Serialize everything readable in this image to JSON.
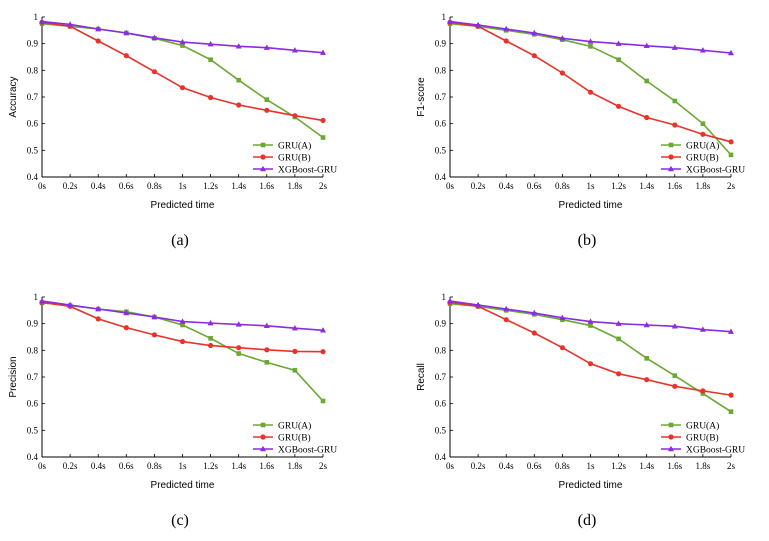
{
  "chart_data": [
    {
      "type": "line",
      "caption": "(a)",
      "xlabel": "Predicted time",
      "ylabel": "Accuracy",
      "categories": [
        "0s",
        "0.2s",
        "0.4s",
        "0.6s",
        "0.8s",
        "1s",
        "1.2s",
        "1.4s",
        "1.6s",
        "1.8s",
        "2s"
      ],
      "ylim": [
        0.4,
        1.0
      ],
      "yticks": [
        "0.4",
        "0.5",
        "0.6",
        "0.7",
        "0.8",
        "0.9",
        "1"
      ],
      "series": [
        {
          "name": "GRU(A)",
          "color": "#6aa832",
          "marker": "square",
          "values": [
            0.975,
            0.965,
            0.955,
            0.94,
            0.92,
            0.893,
            0.84,
            0.763,
            0.69,
            0.625,
            0.548
          ]
        },
        {
          "name": "GRU(B)",
          "color": "#e8332a",
          "marker": "circle",
          "values": [
            0.98,
            0.965,
            0.91,
            0.855,
            0.795,
            0.735,
            0.698,
            0.67,
            0.65,
            0.63,
            0.612
          ]
        },
        {
          "name": "XGBoost-GRU",
          "color": "#8b2be2",
          "marker": "triangle",
          "values": [
            0.983,
            0.972,
            0.955,
            0.94,
            0.922,
            0.906,
            0.898,
            0.89,
            0.885,
            0.875,
            0.866
          ]
        }
      ]
    },
    {
      "type": "line",
      "caption": "(b)",
      "xlabel": "Predicted time",
      "ylabel": "F1-score",
      "categories": [
        "0s",
        "0.2s",
        "0.4s",
        "0.6s",
        "0.8s",
        "1s",
        "1.2s",
        "1.4s",
        "1.6s",
        "1.8s",
        "2s"
      ],
      "ylim": [
        0.4,
        1.0
      ],
      "yticks": [
        "0.4",
        "0.5",
        "0.6",
        "0.7",
        "0.8",
        "0.9",
        "1"
      ],
      "series": [
        {
          "name": "GRU(A)",
          "color": "#6aa832",
          "marker": "square",
          "values": [
            0.975,
            0.965,
            0.95,
            0.935,
            0.915,
            0.89,
            0.84,
            0.76,
            0.685,
            0.6,
            0.483
          ]
        },
        {
          "name": "GRU(B)",
          "color": "#e8332a",
          "marker": "circle",
          "values": [
            0.98,
            0.965,
            0.91,
            0.855,
            0.79,
            0.718,
            0.665,
            0.623,
            0.595,
            0.56,
            0.532
          ]
        },
        {
          "name": "XGBoost-GRU",
          "color": "#8b2be2",
          "marker": "triangle",
          "values": [
            0.983,
            0.97,
            0.955,
            0.94,
            0.92,
            0.908,
            0.9,
            0.892,
            0.885,
            0.875,
            0.865
          ]
        }
      ]
    },
    {
      "type": "line",
      "caption": "(c)",
      "xlabel": "Predicted time",
      "ylabel": "Precision",
      "categories": [
        "0s",
        "0.2s",
        "0.4s",
        "0.6s",
        "0.8s",
        "1s",
        "1.2s",
        "1.4s",
        "1.6s",
        "1.8s",
        "2s"
      ],
      "ylim": [
        0.4,
        1.0
      ],
      "yticks": [
        "0.4",
        "0.5",
        "0.6",
        "0.7",
        "0.8",
        "0.9",
        "1"
      ],
      "series": [
        {
          "name": "GRU(A)",
          "color": "#6aa832",
          "marker": "square",
          "values": [
            0.978,
            0.968,
            0.955,
            0.945,
            0.925,
            0.895,
            0.845,
            0.788,
            0.755,
            0.725,
            0.61
          ]
        },
        {
          "name": "GRU(B)",
          "color": "#e8332a",
          "marker": "circle",
          "values": [
            0.98,
            0.965,
            0.918,
            0.885,
            0.858,
            0.833,
            0.818,
            0.81,
            0.802,
            0.796,
            0.795
          ]
        },
        {
          "name": "XGBoost-GRU",
          "color": "#8b2be2",
          "marker": "triangle",
          "values": [
            0.985,
            0.97,
            0.955,
            0.94,
            0.925,
            0.908,
            0.902,
            0.897,
            0.892,
            0.883,
            0.875
          ]
        }
      ]
    },
    {
      "type": "line",
      "caption": "(d)",
      "xlabel": "Predicted time",
      "ylabel": "Recall",
      "categories": [
        "0s",
        "0.2s",
        "0.4s",
        "0.6s",
        "0.8s",
        "1s",
        "1.2s",
        "1.4s",
        "1.6s",
        "1.8s",
        "2s"
      ],
      "ylim": [
        0.4,
        1.0
      ],
      "yticks": [
        "0.4",
        "0.5",
        "0.6",
        "0.7",
        "0.8",
        "0.9",
        "1"
      ],
      "series": [
        {
          "name": "GRU(A)",
          "color": "#6aa832",
          "marker": "square",
          "values": [
            0.975,
            0.965,
            0.95,
            0.935,
            0.915,
            0.893,
            0.843,
            0.77,
            0.705,
            0.638,
            0.57
          ]
        },
        {
          "name": "GRU(B)",
          "color": "#e8332a",
          "marker": "circle",
          "values": [
            0.98,
            0.965,
            0.915,
            0.865,
            0.81,
            0.75,
            0.712,
            0.69,
            0.665,
            0.648,
            0.632
          ]
        },
        {
          "name": "XGBoost-GRU",
          "color": "#8b2be2",
          "marker": "triangle",
          "values": [
            0.985,
            0.97,
            0.955,
            0.94,
            0.922,
            0.908,
            0.9,
            0.895,
            0.89,
            0.878,
            0.87
          ]
        }
      ]
    }
  ]
}
